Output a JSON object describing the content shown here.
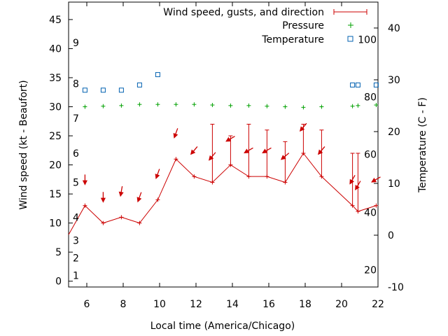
{
  "chart_data": {
    "type": "line",
    "xlabel": "Local time (America/Chicago)",
    "ylabel_left": "Wind speed (kt - Beaufort)",
    "ylabel_right": "Temperature (C - F)",
    "xlim": [
      5,
      22
    ],
    "ylim_left": [
      -1,
      48
    ],
    "ylim_right": [
      -10,
      45
    ],
    "x_ticks": [
      6,
      8,
      10,
      12,
      14,
      16,
      18,
      20,
      22
    ],
    "y_left_ticks": [
      0,
      5,
      10,
      15,
      20,
      25,
      30,
      35,
      40,
      45
    ],
    "y_right_ticks": [
      -10,
      0,
      10,
      20,
      30,
      40
    ],
    "beaufort_labels": [
      {
        "label": "1",
        "kt": 1
      },
      {
        "label": "2",
        "kt": 4
      },
      {
        "label": "3",
        "kt": 7
      },
      {
        "label": "4",
        "kt": 11
      },
      {
        "label": "5",
        "kt": 17
      },
      {
        "label": "6",
        "kt": 22
      },
      {
        "label": "7",
        "kt": 28
      },
      {
        "label": "8",
        "kt": 34
      },
      {
        "label": "9",
        "kt": 41
      }
    ],
    "fahrenheit_labels": [
      {
        "label": "20",
        "c": -6.7
      },
      {
        "label": "40",
        "c": 4.4
      },
      {
        "label": "60",
        "c": 15.6
      },
      {
        "label": "80",
        "c": 26.7
      },
      {
        "label": "100",
        "c": 37.8
      }
    ],
    "legend": {
      "position": "top-right",
      "entries": [
        "Wind speed, gusts, and direction",
        "Pressure",
        "Temperature"
      ]
    },
    "series": [
      {
        "name": "Wind speed, gusts, and direction",
        "color": "#cc0000",
        "x": [
          4.9,
          5.9,
          6.9,
          7.9,
          8.9,
          9.9,
          10.9,
          11.9,
          12.9,
          13.9,
          14.9,
          15.9,
          16.9,
          17.9,
          18.9,
          20.6,
          20.9,
          21.9
        ],
        "y": [
          8,
          13,
          10,
          11,
          10,
          14,
          21,
          18,
          17,
          20,
          18,
          18,
          17,
          22,
          18,
          13,
          12,
          13
        ],
        "gusts": [
          null,
          null,
          null,
          null,
          null,
          null,
          null,
          null,
          27,
          25,
          27,
          26,
          24,
          27,
          26,
          22,
          22,
          null
        ],
        "direction_deg": [
          180,
          180,
          180,
          190,
          200,
          200,
          200,
          220,
          220,
          240,
          240,
          240,
          230,
          220,
          220,
          210,
          210,
          240
        ]
      },
      {
        "name": "Pressure",
        "color": "#00a000",
        "marker": "+",
        "x": [
          5.9,
          6.9,
          7.9,
          8.9,
          9.9,
          10.9,
          11.9,
          12.9,
          13.9,
          14.9,
          15.9,
          16.9,
          17.9,
          18.9,
          20.6,
          20.9,
          21.9
        ],
        "y": [
          30,
          30.1,
          30.2,
          30.4,
          30.4,
          30.4,
          30.4,
          30.3,
          30.2,
          30.2,
          30.1,
          30,
          29.9,
          30,
          30.1,
          30.2,
          30.3
        ]
      },
      {
        "name": "Temperature",
        "color": "#0060b0",
        "marker": "square",
        "x": [
          5.9,
          6.9,
          7.9,
          8.9,
          9.9,
          20.6,
          20.9,
          21.9
        ],
        "y": [
          28,
          28,
          28,
          29,
          31,
          29,
          29,
          29
        ]
      }
    ]
  }
}
